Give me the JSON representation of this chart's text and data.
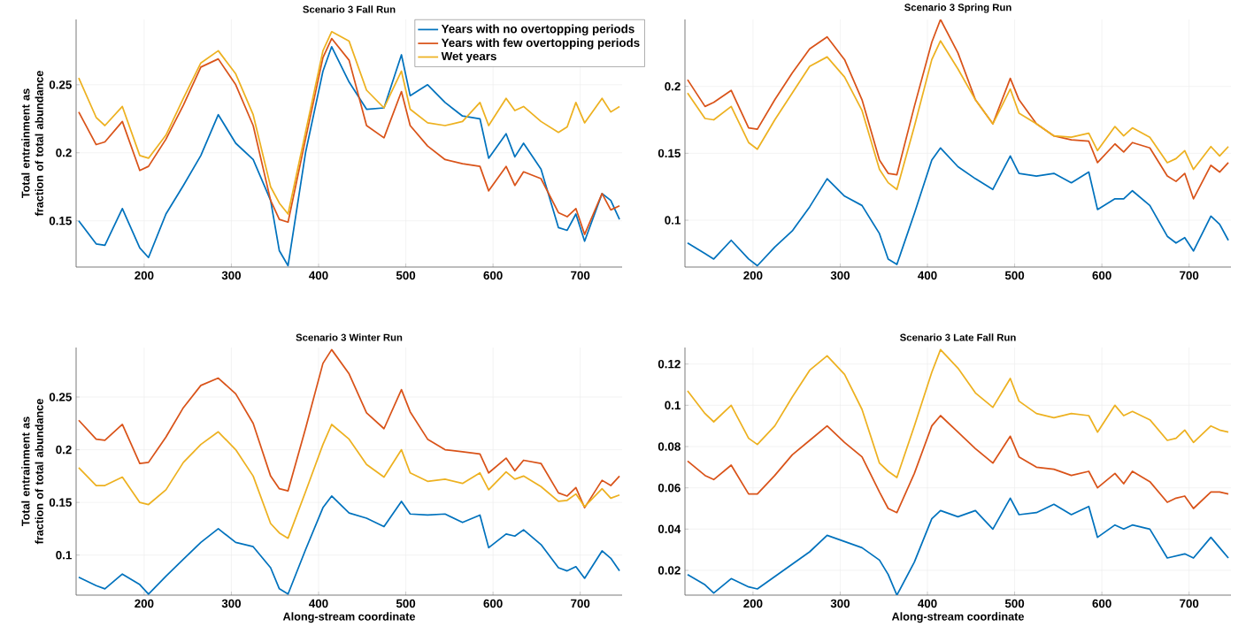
{
  "chart_data": [
    {
      "type": "line",
      "title": "Scenario 3 Fall Run",
      "ylabel": "Total entrainment as fraction of total abundance",
      "x": [
        125,
        145,
        155,
        175,
        195,
        205,
        225,
        245,
        265,
        285,
        305,
        325,
        345,
        355,
        365,
        385,
        405,
        415,
        435,
        455,
        475,
        495,
        505,
        525,
        545,
        565,
        585,
        595,
        615,
        625,
        635,
        655,
        675,
        685,
        695,
        705,
        725,
        735,
        745
      ],
      "series": [
        {
          "name": "Years with no overtopping periods",
          "color": "#0072bd",
          "values": [
            0.15,
            0.133,
            0.132,
            0.159,
            0.13,
            0.123,
            0.155,
            0.176,
            0.198,
            0.228,
            0.207,
            0.195,
            0.165,
            0.128,
            0.117,
            0.2,
            0.26,
            0.278,
            0.252,
            0.232,
            0.233,
            0.272,
            0.242,
            0.25,
            0.237,
            0.227,
            0.225,
            0.196,
            0.214,
            0.197,
            0.207,
            0.188,
            0.145,
            0.143,
            0.155,
            0.135,
            0.17,
            0.165,
            0.151
          ]
        },
        {
          "name": "Years with few overtopping periods",
          "color": "#d95319",
          "values": [
            0.23,
            0.206,
            0.208,
            0.223,
            0.187,
            0.19,
            0.21,
            0.235,
            0.263,
            0.269,
            0.25,
            0.22,
            0.165,
            0.151,
            0.149,
            0.21,
            0.27,
            0.284,
            0.268,
            0.22,
            0.211,
            0.245,
            0.22,
            0.205,
            0.195,
            0.192,
            0.19,
            0.172,
            0.19,
            0.176,
            0.186,
            0.181,
            0.156,
            0.153,
            0.159,
            0.14,
            0.17,
            0.158,
            0.161
          ]
        },
        {
          "name": "Wet years",
          "color": "#edb120",
          "values": [
            0.255,
            0.226,
            0.22,
            0.234,
            0.198,
            0.196,
            0.213,
            0.24,
            0.266,
            0.275,
            0.258,
            0.228,
            0.175,
            0.163,
            0.155,
            0.215,
            0.275,
            0.289,
            0.282,
            0.246,
            0.233,
            0.26,
            0.232,
            0.222,
            0.22,
            0.223,
            0.237,
            0.22,
            0.24,
            0.231,
            0.234,
            0.223,
            0.215,
            0.219,
            0.237,
            0.222,
            0.24,
            0.23,
            0.234
          ]
        }
      ],
      "xlim": [
        122,
        748
      ],
      "ylim": [
        0.116,
        0.298
      ],
      "xticks": [
        200,
        300,
        400,
        500,
        600,
        700
      ],
      "yticks": [
        0.15,
        0.2,
        0.25
      ],
      "grid": true,
      "legend": "top right"
    },
    {
      "type": "line",
      "title": "Scenario 3 Spring Run",
      "x": [
        125,
        145,
        155,
        175,
        195,
        205,
        225,
        245,
        265,
        285,
        305,
        325,
        345,
        355,
        365,
        385,
        405,
        415,
        435,
        455,
        475,
        495,
        505,
        525,
        545,
        565,
        585,
        595,
        615,
        625,
        635,
        655,
        675,
        685,
        695,
        705,
        725,
        735,
        745
      ],
      "series": [
        {
          "color": "#0072bd",
          "values": [
            0.083,
            0.075,
            0.071,
            0.085,
            0.071,
            0.066,
            0.08,
            0.092,
            0.11,
            0.131,
            0.118,
            0.111,
            0.09,
            0.071,
            0.067,
            0.105,
            0.145,
            0.154,
            0.14,
            0.131,
            0.123,
            0.148,
            0.135,
            0.133,
            0.135,
            0.128,
            0.136,
            0.108,
            0.116,
            0.116,
            0.122,
            0.111,
            0.088,
            0.083,
            0.087,
            0.077,
            0.103,
            0.097,
            0.085
          ]
        },
        {
          "color": "#d95319",
          "values": [
            0.205,
            0.185,
            0.188,
            0.197,
            0.169,
            0.168,
            0.19,
            0.21,
            0.228,
            0.237,
            0.22,
            0.19,
            0.145,
            0.135,
            0.134,
            0.185,
            0.233,
            0.25,
            0.225,
            0.19,
            0.172,
            0.206,
            0.19,
            0.172,
            0.163,
            0.16,
            0.159,
            0.143,
            0.157,
            0.151,
            0.158,
            0.154,
            0.133,
            0.129,
            0.135,
            0.116,
            0.141,
            0.136,
            0.143
          ]
        },
        {
          "color": "#edb120",
          "values": [
            0.195,
            0.176,
            0.175,
            0.185,
            0.158,
            0.153,
            0.175,
            0.195,
            0.215,
            0.222,
            0.207,
            0.182,
            0.138,
            0.128,
            0.123,
            0.17,
            0.22,
            0.234,
            0.213,
            0.19,
            0.172,
            0.198,
            0.18,
            0.172,
            0.163,
            0.162,
            0.165,
            0.152,
            0.17,
            0.163,
            0.169,
            0.162,
            0.143,
            0.146,
            0.152,
            0.138,
            0.155,
            0.148,
            0.155
          ]
        }
      ],
      "xlim": [
        122,
        748
      ],
      "ylim": [
        0.065,
        0.25
      ],
      "xticks": [
        200,
        300,
        400,
        500,
        600,
        700
      ],
      "yticks": [
        0.1,
        0.15,
        0.2
      ],
      "grid": true
    },
    {
      "type": "line",
      "title": "Scenario 3 Winter Run",
      "xlabel": "Along-stream coordinate",
      "ylabel": "Total entrainment as fraction of total abundance",
      "x": [
        125,
        145,
        155,
        175,
        195,
        205,
        225,
        245,
        265,
        285,
        305,
        325,
        345,
        355,
        365,
        385,
        405,
        415,
        435,
        455,
        475,
        495,
        505,
        525,
        545,
        565,
        585,
        595,
        615,
        625,
        635,
        655,
        675,
        685,
        695,
        705,
        725,
        735,
        745
      ],
      "series": [
        {
          "color": "#0072bd",
          "values": [
            0.079,
            0.071,
            0.068,
            0.082,
            0.072,
            0.063,
            0.08,
            0.096,
            0.112,
            0.125,
            0.112,
            0.108,
            0.088,
            0.068,
            0.063,
            0.105,
            0.145,
            0.156,
            0.14,
            0.135,
            0.127,
            0.151,
            0.139,
            0.138,
            0.139,
            0.131,
            0.138,
            0.107,
            0.12,
            0.118,
            0.124,
            0.11,
            0.088,
            0.085,
            0.089,
            0.078,
            0.104,
            0.097,
            0.085
          ]
        },
        {
          "color": "#d95319",
          "values": [
            0.228,
            0.21,
            0.209,
            0.224,
            0.187,
            0.188,
            0.212,
            0.24,
            0.261,
            0.268,
            0.253,
            0.225,
            0.175,
            0.163,
            0.161,
            0.22,
            0.282,
            0.295,
            0.272,
            0.235,
            0.22,
            0.257,
            0.236,
            0.21,
            0.2,
            0.198,
            0.196,
            0.178,
            0.192,
            0.18,
            0.19,
            0.187,
            0.159,
            0.156,
            0.164,
            0.145,
            0.171,
            0.166,
            0.175
          ]
        },
        {
          "color": "#edb120",
          "values": [
            0.183,
            0.166,
            0.166,
            0.174,
            0.15,
            0.148,
            0.162,
            0.188,
            0.205,
            0.217,
            0.2,
            0.175,
            0.13,
            0.121,
            0.116,
            0.16,
            0.205,
            0.224,
            0.21,
            0.186,
            0.174,
            0.2,
            0.178,
            0.17,
            0.172,
            0.168,
            0.178,
            0.162,
            0.179,
            0.172,
            0.175,
            0.165,
            0.151,
            0.152,
            0.158,
            0.146,
            0.163,
            0.154,
            0.157
          ]
        }
      ],
      "xlim": [
        122,
        748
      ],
      "ylim": [
        0.062,
        0.297
      ],
      "xticks": [
        200,
        300,
        400,
        500,
        600,
        700
      ],
      "yticks": [
        0.1,
        0.15,
        0.2,
        0.25
      ],
      "grid": true
    },
    {
      "type": "line",
      "title": "Scenario 3 Late Fall Run",
      "xlabel": "Along-stream coordinate",
      "x": [
        125,
        145,
        155,
        175,
        195,
        205,
        225,
        245,
        265,
        285,
        305,
        325,
        345,
        355,
        365,
        385,
        405,
        415,
        435,
        455,
        475,
        495,
        505,
        525,
        545,
        565,
        585,
        595,
        615,
        625,
        635,
        655,
        675,
        685,
        695,
        705,
        725,
        735,
        745
      ],
      "series": [
        {
          "color": "#0072bd",
          "values": [
            0.018,
            0.013,
            0.009,
            0.016,
            0.012,
            0.011,
            0.017,
            0.023,
            0.029,
            0.037,
            0.034,
            0.031,
            0.025,
            0.018,
            0.008,
            0.024,
            0.045,
            0.049,
            0.046,
            0.049,
            0.04,
            0.055,
            0.047,
            0.048,
            0.052,
            0.047,
            0.051,
            0.036,
            0.042,
            0.04,
            0.042,
            0.04,
            0.026,
            0.027,
            0.028,
            0.026,
            0.036,
            0.031,
            0.026
          ]
        },
        {
          "color": "#d95319",
          "values": [
            0.073,
            0.066,
            0.064,
            0.071,
            0.057,
            0.057,
            0.066,
            0.076,
            0.083,
            0.09,
            0.082,
            0.075,
            0.058,
            0.05,
            0.048,
            0.067,
            0.09,
            0.095,
            0.087,
            0.079,
            0.072,
            0.085,
            0.075,
            0.07,
            0.069,
            0.066,
            0.068,
            0.06,
            0.067,
            0.062,
            0.068,
            0.063,
            0.053,
            0.055,
            0.056,
            0.05,
            0.058,
            0.058,
            0.057
          ]
        },
        {
          "color": "#edb120",
          "values": [
            0.107,
            0.096,
            0.092,
            0.1,
            0.084,
            0.081,
            0.09,
            0.104,
            0.117,
            0.124,
            0.115,
            0.098,
            0.072,
            0.068,
            0.065,
            0.09,
            0.116,
            0.127,
            0.118,
            0.106,
            0.099,
            0.113,
            0.102,
            0.096,
            0.094,
            0.096,
            0.095,
            0.087,
            0.1,
            0.095,
            0.097,
            0.093,
            0.083,
            0.084,
            0.088,
            0.082,
            0.09,
            0.088,
            0.087
          ]
        }
      ],
      "xlim": [
        122,
        748
      ],
      "ylim": [
        0.008,
        0.128
      ],
      "xticks": [
        200,
        300,
        400,
        500,
        600,
        700
      ],
      "yticks": [
        0.02,
        0.04,
        0.06,
        0.08,
        0.1,
        0.12
      ],
      "grid": true
    }
  ]
}
